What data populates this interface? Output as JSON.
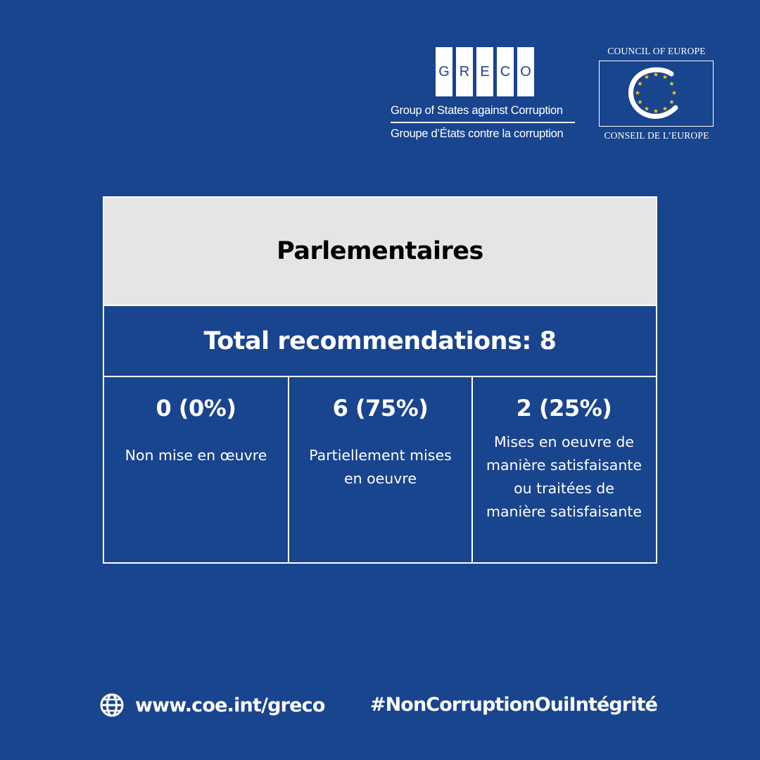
{
  "greco_logo": {
    "letters": [
      "G",
      "R",
      "E",
      "C",
      "O"
    ],
    "name_en": "Group of States against Corruption",
    "name_fr": "Groupe d’États contre la corruption"
  },
  "coe_logo": {
    "name_en": "COUNCIL OF EUROPE",
    "name_fr": "CONSEIL DE L’EUROPE",
    "emblem_icon": "council-of-europe-emblem-icon",
    "star_color": "#f2c318"
  },
  "table": {
    "title": "Parlementaires",
    "total": "Total recommendations: 8",
    "cells": [
      {
        "value": "0 (0%)",
        "label": "Non mise en œuvre"
      },
      {
        "value": "6 (75%)",
        "label": "Partiellement mises en oeuvre"
      },
      {
        "value": "2 (25%)",
        "label": "Mises en oeuvre de manière satisfaisante ou traitées de manière satisfaisante"
      }
    ]
  },
  "footer": {
    "url_icon": "globe-icon",
    "url": "www.coe.int/greco",
    "hashtag": "#NonCorruptionOuiIntégrité"
  },
  "colors": {
    "background": "#19448e",
    "header_fill": "#e5e5e5",
    "text": "#ffffff"
  }
}
